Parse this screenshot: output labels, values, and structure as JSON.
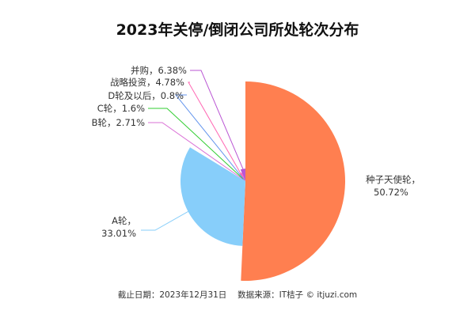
{
  "chart_data": {
    "type": "pie",
    "rose_type": "radius",
    "title": "2023年关停/倒闭公司所处轮次分布",
    "source": "截止日期：2023年12月31日　 数据来源：IT桔子 © itjuzi.com",
    "slices": [
      {
        "name": "种子天使轮",
        "value": 50.72,
        "label": "种子天使轮，",
        "pct": "50.72%",
        "color": "#ff7f50"
      },
      {
        "name": "A轮",
        "value": 33.01,
        "label": "A轮，",
        "pct": "33.01%",
        "color": "#87cefa"
      },
      {
        "name": "B轮",
        "value": 2.71,
        "label": "B轮，2.71%",
        "color": "#da70d6"
      },
      {
        "name": "C轮",
        "value": 1.6,
        "label": "C轮，1.6%",
        "color": "#32cd32"
      },
      {
        "name": "D轮及以后",
        "value": 0.8,
        "label": "D轮及以后，0.8%",
        "color": "#6495ed"
      },
      {
        "name": "战略投资",
        "value": 4.78,
        "label": "战略投资，4.78%",
        "color": "#ff69b4"
      },
      {
        "name": "并购",
        "value": 6.38,
        "label": "并购，6.38%",
        "color": "#ba55d3"
      }
    ]
  }
}
